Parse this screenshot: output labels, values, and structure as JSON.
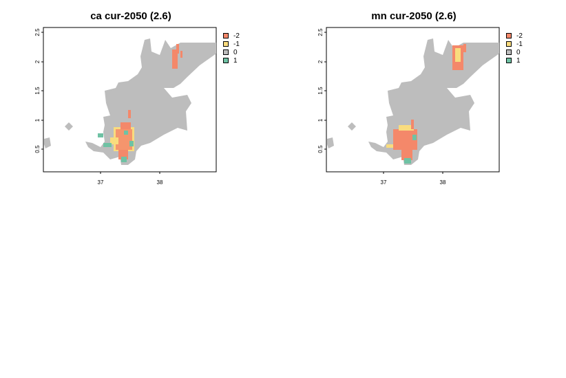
{
  "panels": [
    {
      "title": "ca cur-2050 (2.6)",
      "x_ticks": [
        "37",
        "38"
      ],
      "y_ticks": [
        "0.5",
        "1",
        "1.5",
        "2",
        "2.5"
      ]
    },
    {
      "title": "mn cur-2050 (2.6)",
      "x_ticks": [
        "37",
        "38"
      ],
      "y_ticks": [
        "0.5",
        "1",
        "1.5",
        "2",
        "2.5"
      ]
    }
  ],
  "legend": [
    {
      "label": "-2",
      "color": "#F4886A"
    },
    {
      "label": "-1",
      "color": "#F9DC7E"
    },
    {
      "label": "0",
      "color": "#BDBDBD"
    },
    {
      "label": "1",
      "color": "#6FC2A4"
    }
  ],
  "colors": {
    "land": "#BDBDBD",
    "loss_strong": "#F4886A",
    "loss_weak": "#F9DC7E",
    "gain": "#6FC2A4"
  }
}
